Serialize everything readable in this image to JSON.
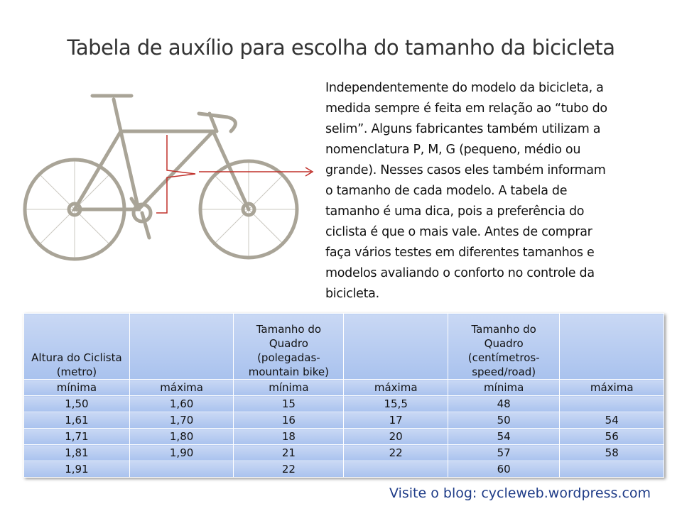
{
  "header": {
    "title": "Tabela de auxílio para escolha do tamanho da bicicleta"
  },
  "paragraph": {
    "lines": [
      "Independentemente do modelo da bicicleta, a",
      "medida sempre é feita em relação ao “tubo do",
      "selim”. Alguns fabricantes também utilizam a",
      "nomenclatura P, M, G (pequeno, médio ou",
      "grande). Nesses casos eles também informam",
      "o tamanho de cada modelo. A tabela de",
      "tamanho é uma dica, pois a preferência do",
      "ciclista é que o mais vale. Antes de comprar",
      "faça vários testes em diferentes tamanhos e",
      "modelos avaliando o conforto no controle da",
      "bicicleta."
    ]
  },
  "table": {
    "rows": [
      [
        "Altura do Ciclista (metro)",
        null,
        "Tamanho do Quadro (polegadas-mountain bike)",
        null,
        "Tamanho do Quadro (centímetros-speed/road)",
        null
      ],
      [
        "mínima",
        "máxima",
        "mínima",
        "máxima",
        "mínima",
        "máxima"
      ],
      [
        "1,50",
        "1,60",
        "15",
        "15,5",
        "48",
        null
      ],
      [
        "1,61",
        "1,70",
        "16",
        "17",
        "50",
        "54"
      ],
      [
        "1,71",
        "1,80",
        "18",
        "20",
        "54",
        "56"
      ],
      [
        "1,81",
        "1,90",
        "21",
        "22",
        "57",
        "58"
      ],
      [
        "1,91",
        null,
        "22",
        null,
        "60",
        null
      ]
    ]
  },
  "footer": {
    "text": "Visite o blog: cycleweb.wordpress.com"
  }
}
